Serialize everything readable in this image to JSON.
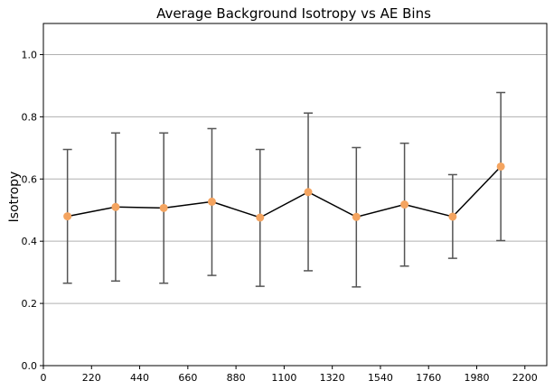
{
  "chart_data": {
    "type": "line",
    "title": "Average Background Isotropy vs AE Bins",
    "xlabel": "",
    "ylabel": "Isotropy",
    "xlim": [
      0,
      2300
    ],
    "ylim": [
      0.0,
      1.1
    ],
    "xticks": [
      0,
      220,
      440,
      660,
      880,
      1100,
      1320,
      1540,
      1760,
      1980,
      2200
    ],
    "yticks": [
      0.0,
      0.2,
      0.4,
      0.6,
      0.8,
      1.0
    ],
    "ytick_labels": [
      "0.0",
      "0.2",
      "0.4",
      "0.6",
      "0.8",
      "1.0"
    ],
    "grid": "horizontal",
    "series": [
      {
        "x": [
          110,
          330,
          550,
          770,
          990,
          1210,
          1430,
          1650,
          1870,
          2090
        ],
        "y": [
          0.48,
          0.51,
          0.507,
          0.527,
          0.476,
          0.558,
          0.478,
          0.518,
          0.479,
          0.64
        ],
        "err_low": [
          0.265,
          0.272,
          0.265,
          0.29,
          0.255,
          0.305,
          0.253,
          0.32,
          0.345,
          0.402
        ],
        "err_high": [
          0.695,
          0.748,
          0.748,
          0.762,
          0.695,
          0.812,
          0.701,
          0.715,
          0.614,
          0.878
        ],
        "line_color": "#000000",
        "marker_color": "#f4a460",
        "errorbar_color": "#555555"
      }
    ]
  }
}
